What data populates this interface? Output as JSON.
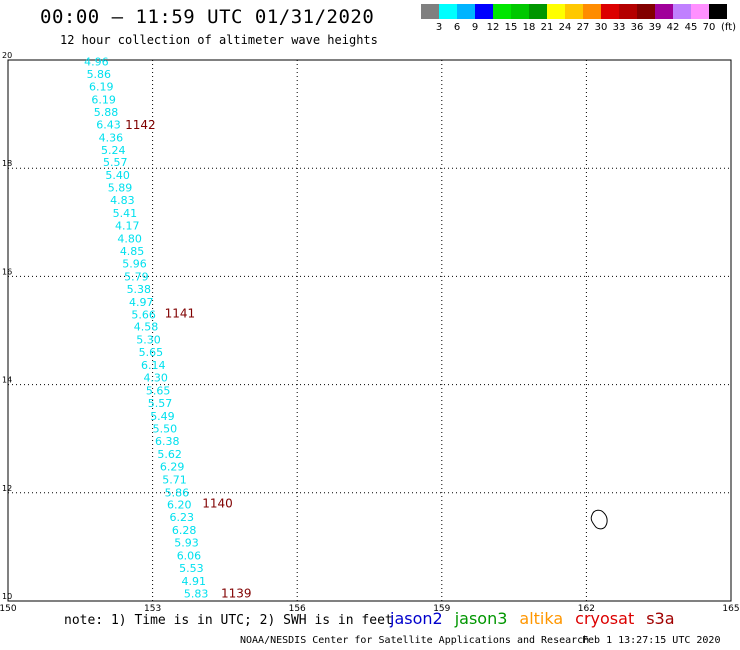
{
  "header": {
    "title": "00:00 – 11:59 UTC 01/31/2020",
    "subtitle": "12 hour collection of altimeter wave heights"
  },
  "color_scale": {
    "colors": [
      "#808080",
      "#00ffff",
      "#00b4ff",
      "#0000ff",
      "#00e600",
      "#00c800",
      "#009600",
      "#ffff00",
      "#ffc800",
      "#ff8c00",
      "#dc0000",
      "#b40000",
      "#820000",
      "#a0009a",
      "#c080ff",
      "#ff90ff",
      "#000000"
    ],
    "labels": [
      "3",
      "6",
      "9",
      "12",
      "15",
      "18",
      "21",
      "24",
      "27",
      "30",
      "33",
      "36",
      "39",
      "42",
      "45",
      "70"
    ],
    "unit": "(ft)"
  },
  "map": {
    "x_ticks": [
      "150",
      "153",
      "156",
      "159",
      "162",
      "165"
    ],
    "y_ticks": [
      "20",
      "18",
      "16",
      "14",
      "12",
      "10"
    ],
    "wave_color": "#00e0ee",
    "cycle_color": "#800000",
    "track_points": [
      {
        "lon": 151.58,
        "lat": 19.97,
        "swh": "4.96"
      },
      {
        "lon": 151.63,
        "lat": 19.74,
        "swh": "5.86"
      },
      {
        "lon": 151.68,
        "lat": 19.51,
        "swh": "6.19"
      },
      {
        "lon": 151.73,
        "lat": 19.27,
        "swh": "6.19"
      },
      {
        "lon": 151.78,
        "lat": 19.04,
        "swh": "5.88"
      },
      {
        "lon": 151.83,
        "lat": 18.81,
        "swh": "6.43"
      },
      {
        "lon": 151.88,
        "lat": 18.57,
        "swh": "4.36"
      },
      {
        "lon": 151.93,
        "lat": 18.34,
        "swh": "5.24"
      },
      {
        "lon": 151.97,
        "lat": 18.11,
        "swh": "5.57"
      },
      {
        "lon": 152.02,
        "lat": 17.87,
        "swh": "5.40"
      },
      {
        "lon": 152.07,
        "lat": 17.64,
        "swh": "5.89"
      },
      {
        "lon": 152.12,
        "lat": 17.41,
        "swh": "4.83"
      },
      {
        "lon": 152.17,
        "lat": 17.17,
        "swh": "5.41"
      },
      {
        "lon": 152.22,
        "lat": 16.94,
        "swh": "4.17"
      },
      {
        "lon": 152.27,
        "lat": 16.7,
        "swh": "4.80"
      },
      {
        "lon": 152.32,
        "lat": 16.47,
        "swh": "4.85"
      },
      {
        "lon": 152.37,
        "lat": 16.24,
        "swh": "5.96"
      },
      {
        "lon": 152.41,
        "lat": 16.0,
        "swh": "5.79"
      },
      {
        "lon": 152.46,
        "lat": 15.77,
        "swh": "5.38"
      },
      {
        "lon": 152.51,
        "lat": 15.53,
        "swh": "4.97"
      },
      {
        "lon": 152.56,
        "lat": 15.3,
        "swh": "5.66"
      },
      {
        "lon": 152.61,
        "lat": 15.07,
        "swh": "4.58"
      },
      {
        "lon": 152.66,
        "lat": 14.83,
        "swh": "5.30"
      },
      {
        "lon": 152.71,
        "lat": 14.6,
        "swh": "5.65"
      },
      {
        "lon": 152.76,
        "lat": 14.36,
        "swh": "6.14"
      },
      {
        "lon": 152.81,
        "lat": 14.13,
        "swh": "4.30"
      },
      {
        "lon": 152.86,
        "lat": 13.89,
        "swh": "5.65"
      },
      {
        "lon": 152.9,
        "lat": 13.66,
        "swh": "5.57"
      },
      {
        "lon": 152.95,
        "lat": 13.42,
        "swh": "5.49"
      },
      {
        "lon": 153.0,
        "lat": 13.19,
        "swh": "5.50"
      },
      {
        "lon": 153.05,
        "lat": 12.96,
        "swh": "6.38"
      },
      {
        "lon": 153.1,
        "lat": 12.72,
        "swh": "5.62"
      },
      {
        "lon": 153.15,
        "lat": 12.49,
        "swh": "6.29"
      },
      {
        "lon": 153.2,
        "lat": 12.25,
        "swh": "5.71"
      },
      {
        "lon": 153.25,
        "lat": 12.01,
        "swh": "5.86"
      },
      {
        "lon": 153.3,
        "lat": 11.78,
        "swh": "6.20"
      },
      {
        "lon": 153.35,
        "lat": 11.55,
        "swh": "6.23"
      },
      {
        "lon": 153.4,
        "lat": 11.31,
        "swh": "6.28"
      },
      {
        "lon": 153.45,
        "lat": 11.08,
        "swh": "5.93"
      },
      {
        "lon": 153.5,
        "lat": 10.84,
        "swh": "6.06"
      },
      {
        "lon": 153.55,
        "lat": 10.61,
        "swh": "5.53"
      },
      {
        "lon": 153.6,
        "lat": 10.37,
        "swh": "4.91"
      },
      {
        "lon": 153.65,
        "lat": 10.14,
        "swh": "5.83"
      }
    ],
    "cycle_labels": [
      {
        "lon": 152.43,
        "lat": 18.8,
        "label": "1142"
      },
      {
        "lon": 153.25,
        "lat": 15.31,
        "label": "1141"
      },
      {
        "lon": 154.03,
        "lat": 11.8,
        "label": "1140"
      },
      {
        "lon": 154.42,
        "lat": 10.14,
        "label": "1139"
      }
    ]
  },
  "footer": {
    "note": "note:  1) Time is in UTC;  2) SWH is in feet",
    "satellites": [
      {
        "name": "jason2",
        "color": "#0000cc"
      },
      {
        "name": "jason3",
        "color": "#009600"
      },
      {
        "name": "altika",
        "color": "#ff9600"
      },
      {
        "name": "cryosat",
        "color": "#dc0000"
      },
      {
        "name": "s3a",
        "color": "#a00000"
      }
    ],
    "credit": "NOAA/NESDIS Center for Satellite Applications and Research",
    "generated": "Feb  1 13:27:15 UTC 2020"
  }
}
